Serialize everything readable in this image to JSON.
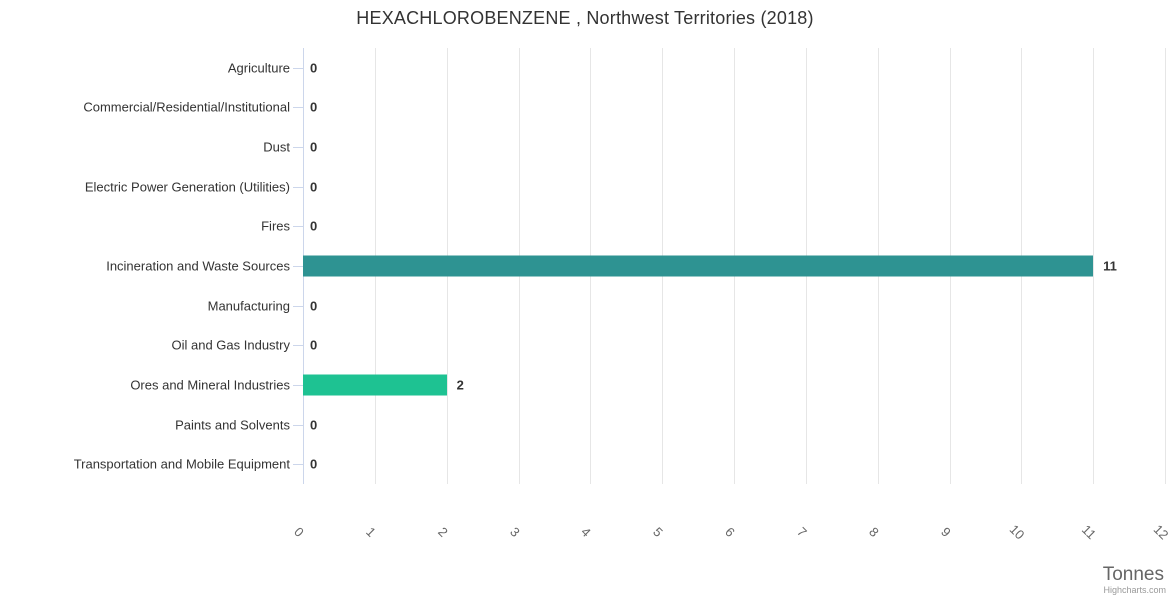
{
  "chart_data": {
    "type": "bar",
    "orientation": "horizontal",
    "title": "HEXACHLOROBENZENE , Northwest Territories (2018)",
    "categories": [
      "Agriculture",
      "Commercial/Residential/Institutional",
      "Dust",
      "Electric Power Generation (Utilities)",
      "Fires",
      "Incineration and Waste Sources",
      "Manufacturing",
      "Oil and Gas Industry",
      "Ores and Mineral Industries",
      "Paints and Solvents",
      "Transportation and Mobile Equipment"
    ],
    "values": [
      0,
      0,
      0,
      0,
      0,
      11,
      0,
      0,
      2,
      0,
      0
    ],
    "bar_colors": [
      null,
      null,
      null,
      null,
      null,
      "#2E9392",
      null,
      null,
      "#1EC292",
      null,
      null
    ],
    "data_labels": [
      "0",
      "0",
      "0",
      "0",
      "0",
      "11",
      "0",
      "0",
      "2",
      "0",
      "0"
    ],
    "xlabel": "Tonnes",
    "ylabel": "",
    "xlim": [
      0,
      12
    ],
    "x_ticks": [
      0,
      1,
      2,
      3,
      4,
      5,
      6,
      7,
      8,
      9,
      10,
      11,
      12
    ],
    "grid": true,
    "legend": false
  },
  "credits": {
    "label": "Highcharts.com"
  },
  "colors": {
    "background": "#ffffff",
    "gridline": "#e6e6e6",
    "axis_line": "#ccd6eb",
    "title_text": "#333333",
    "category_label": "#333333",
    "tick_label": "#666666",
    "data_label": "#333333",
    "axis_title": "#666666",
    "credits_text": "#999999"
  }
}
